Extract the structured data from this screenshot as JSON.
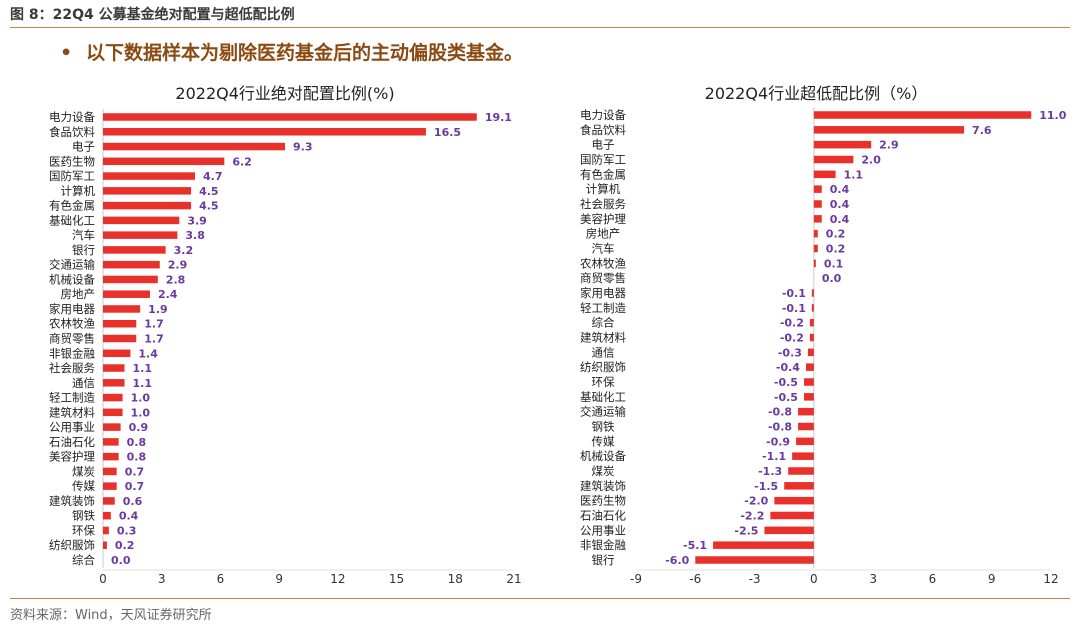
{
  "header": {
    "figure_title": "图 8：22Q4 公募基金绝对配置与超低配比例",
    "bullet_symbol": "•",
    "bullet_text": "以下数据样本为剔除医药基金后的主动偏股类基金。"
  },
  "footer": {
    "source": "资料来源：Wind，天风证券研究所"
  },
  "colors": {
    "bar": "#e8312a",
    "value_label": "#6a3aa0",
    "accent_rule": "#c9853a"
  },
  "chart_data": [
    {
      "type": "bar",
      "orientation": "horizontal",
      "title": "2022Q4行业绝对配置比例(%)",
      "categories": [
        "电力设备",
        "食品饮料",
        "电子",
        "医药生物",
        "国防军工",
        "计算机",
        "有色金属",
        "基础化工",
        "汽车",
        "银行",
        "交通运输",
        "机械设备",
        "房地产",
        "家用电器",
        "农林牧渔",
        "商贸零售",
        "非银金融",
        "社会服务",
        "通信",
        "轻工制造",
        "建筑材料",
        "公用事业",
        "石油石化",
        "美容护理",
        "煤炭",
        "传媒",
        "建筑装饰",
        "钢铁",
        "环保",
        "纺织服饰",
        "综合"
      ],
      "values": [
        19.1,
        16.5,
        9.3,
        6.2,
        4.7,
        4.5,
        4.5,
        3.9,
        3.8,
        3.2,
        2.9,
        2.8,
        2.4,
        1.9,
        1.7,
        1.7,
        1.4,
        1.1,
        1.1,
        1.0,
        1.0,
        0.9,
        0.8,
        0.8,
        0.7,
        0.7,
        0.6,
        0.4,
        0.3,
        0.2,
        0.0
      ],
      "value_labels": [
        "19.1",
        "16.5",
        "9.3",
        "6.2",
        "4.7",
        "4.5",
        "4.5",
        "3.9",
        "3.8",
        "3.2",
        "2.9",
        "2.8",
        "2.4",
        "1.9",
        "1.7",
        "1.7",
        "1.4",
        "1.1",
        "1.1",
        "1.0",
        "1.0",
        "0.9",
        "0.8",
        "0.8",
        "0.7",
        "0.7",
        "0.6",
        "0.4",
        "0.3",
        "0.2",
        "0.0"
      ],
      "xlim": [
        0,
        21
      ],
      "xticks": [
        0,
        3,
        6,
        9,
        12,
        15,
        18,
        21
      ],
      "xtick_labels": [
        "0",
        "3",
        "6",
        "9",
        "12",
        "15",
        "18",
        "21"
      ],
      "grid": false,
      "legend": "none"
    },
    {
      "type": "bar",
      "orientation": "horizontal",
      "title": "2022Q4行业超低配比例（%）",
      "categories": [
        "电力设备",
        "食品饮料",
        "电子",
        "国防军工",
        "有色金属",
        "计算机",
        "社会服务",
        "美容护理",
        "房地产",
        "汽车",
        "农林牧渔",
        "商贸零售",
        "家用电器",
        "轻工制造",
        "综合",
        "建筑材料",
        "通信",
        "纺织服饰",
        "环保",
        "基础化工",
        "交通运输",
        "钢铁",
        "传媒",
        "机械设备",
        "煤炭",
        "建筑装饰",
        "医药生物",
        "石油石化",
        "公用事业",
        "非银金融",
        "银行"
      ],
      "values": [
        11.0,
        7.6,
        2.9,
        2.0,
        1.1,
        0.4,
        0.4,
        0.4,
        0.2,
        0.2,
        0.1,
        0.0,
        -0.1,
        -0.1,
        -0.2,
        -0.2,
        -0.3,
        -0.4,
        -0.5,
        -0.5,
        -0.8,
        -0.8,
        -0.9,
        -1.1,
        -1.3,
        -1.5,
        -2.0,
        -2.2,
        -2.5,
        -5.1,
        -6.0
      ],
      "value_labels": [
        "11.0",
        "7.6",
        "2.9",
        "2.0",
        "1.1",
        "0.4",
        "0.4",
        "0.4",
        "0.2",
        "0.2",
        "0.1",
        "0.0",
        "-0.1",
        "-0.1",
        "-0.2",
        "-0.2",
        "-0.3",
        "-0.4",
        "-0.5",
        "-0.5",
        "-0.8",
        "-0.8",
        "-0.9",
        "-1.1",
        "-1.3",
        "-1.5",
        "-2.0",
        "-2.2",
        "-2.5",
        "-5.1",
        "-6.0"
      ],
      "xlim": [
        -9,
        12
      ],
      "xticks": [
        -9,
        -6,
        -3,
        0,
        3,
        6,
        9,
        12
      ],
      "xtick_labels": [
        "-9",
        "-6",
        "-3",
        "0",
        "3",
        "6",
        "9",
        "12"
      ],
      "grid": false,
      "legend": "none"
    }
  ]
}
